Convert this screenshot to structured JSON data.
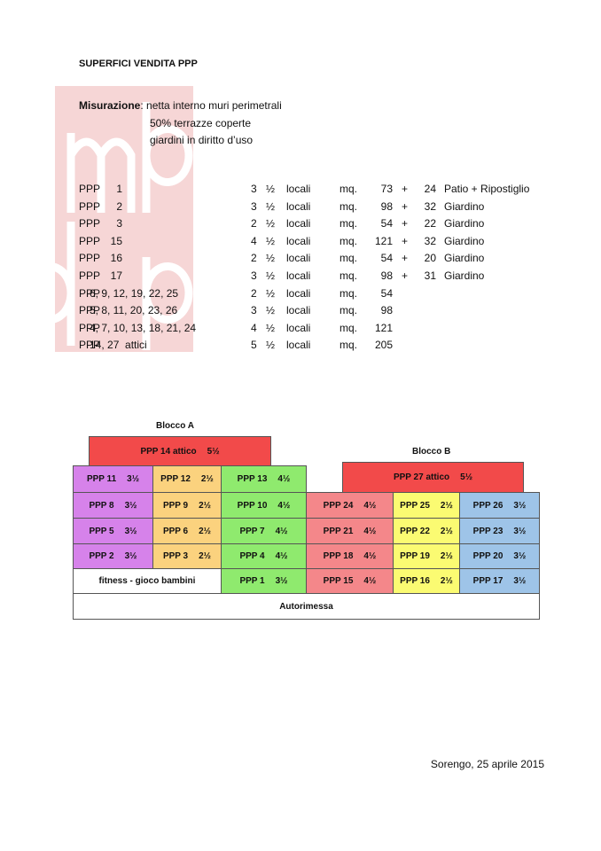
{
  "title": "SUPERFICI VENDITA PPP",
  "measurement": {
    "label": "Misurazione",
    "lines": [
      ": netta interno muri perimetrali",
      "50% terrazze coperte",
      "giardini in diritto d’uso"
    ]
  },
  "table": {
    "rows": [
      [
        "PPP",
        "1",
        "3",
        "½",
        "locali",
        "mq.",
        "73",
        "+",
        "24",
        "Patio + Ripostiglio"
      ],
      [
        "PPP",
        "2",
        "3",
        "½",
        "locali",
        "mq.",
        "98",
        "+",
        "32",
        "Giardino"
      ],
      [
        "PPP",
        "3",
        "2",
        "½",
        "locali",
        "mq.",
        "54",
        "+",
        "22",
        "Giardino"
      ],
      [
        "PPP",
        "15",
        "4",
        "½",
        "locali",
        "mq.",
        "121",
        "+",
        "32",
        "Giardino"
      ],
      [
        "PPP",
        "16",
        "2",
        "½",
        "locali",
        "mq.",
        "54",
        "+",
        "20",
        "Giardino"
      ],
      [
        "PPP",
        "17",
        "3",
        "½",
        "locali",
        "mq.",
        "98",
        "+",
        "31",
        "Giardino"
      ],
      [
        "PPP",
        "6, 9, 12, 19, 22, 25",
        "2",
        "½",
        "locali",
        "mq.",
        "54"
      ],
      [
        "PPP",
        "5, 8, 11, 20, 23, 26",
        "3",
        "½",
        "locali",
        "mq.",
        "98"
      ],
      [
        "PPP",
        "4, 7, 10, 13, 18, 21, 24",
        "4",
        "½",
        "locali",
        "mq.",
        "121"
      ],
      [
        "PPP",
        "14, 27  attici",
        "5",
        "½",
        "locali",
        "mq.",
        "205"
      ]
    ]
  },
  "diagram": {
    "block_a": "Blocco A",
    "block_b": "Blocco B",
    "cells": [
      {
        "name": "PPP 14  attico",
        "size": "5½"
      },
      {
        "name": "PPP 27  attico",
        "size": "5½"
      },
      {
        "name": "PPP 11",
        "size": "3½"
      },
      {
        "name": "PPP 12",
        "size": "2½"
      },
      {
        "name": "PPP 13",
        "size": "4½"
      },
      {
        "name": "PPP 8",
        "size": "3½"
      },
      {
        "name": "PPP 9",
        "size": "2½"
      },
      {
        "name": "PPP 10",
        "size": "4½"
      },
      {
        "name": "PPP 24",
        "size": "4½"
      },
      {
        "name": "PPP 25",
        "size": "2½"
      },
      {
        "name": "PPP 26",
        "size": "3½"
      },
      {
        "name": "PPP 5",
        "size": "3½"
      },
      {
        "name": "PPP 6",
        "size": "2½"
      },
      {
        "name": "PPP 7",
        "size": "4½"
      },
      {
        "name": "PPP 21",
        "size": "4½"
      },
      {
        "name": "PPP 22",
        "size": "2½"
      },
      {
        "name": "PPP 23",
        "size": "3½"
      },
      {
        "name": "PPP 2",
        "size": "3½"
      },
      {
        "name": "PPP 3",
        "size": "2½"
      },
      {
        "name": "PPP 4",
        "size": "4½"
      },
      {
        "name": "PPP 18",
        "size": "4½"
      },
      {
        "name": "PPP 19",
        "size": "2½"
      },
      {
        "name": "PPP 20",
        "size": "3½"
      },
      {
        "name": "fitness - gioco bambini"
      },
      {
        "name": "PPP 1",
        "size": "3½"
      },
      {
        "name": "PPP 15",
        "size": "4½"
      },
      {
        "name": "PPP 16",
        "size": "2½"
      },
      {
        "name": "PPP 17",
        "size": "3½"
      }
    ],
    "garage": "Autorimessa"
  },
  "footer": "Sorengo, 25 aprile 2015"
}
